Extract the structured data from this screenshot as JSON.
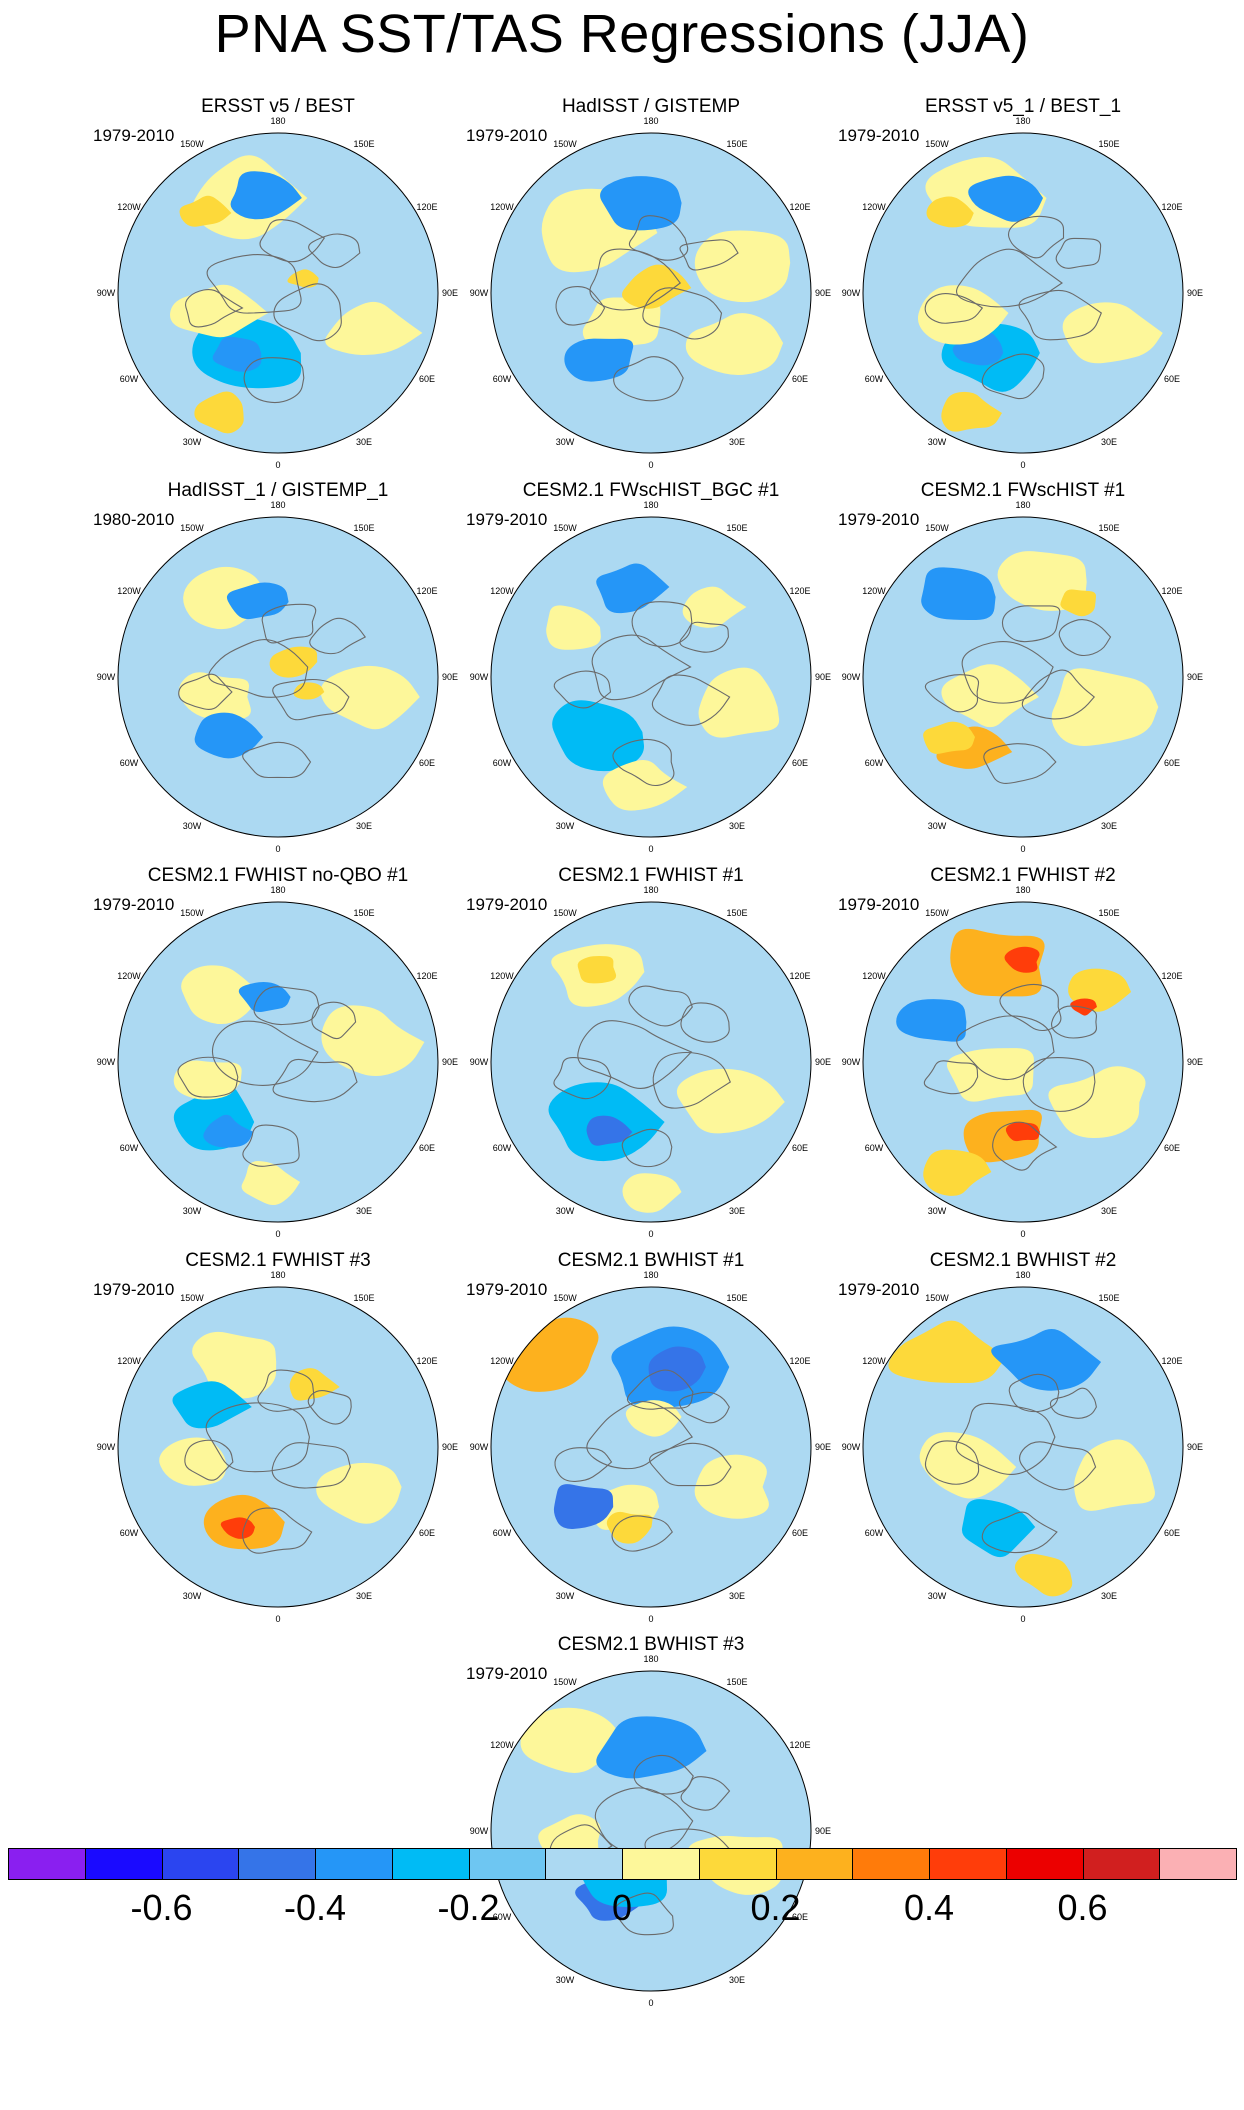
{
  "figure_title": "PNA SST/TAS Regressions (JJA)",
  "longitude_labels": [
    "180",
    "150E",
    "120E",
    "90E",
    "60E",
    "30E",
    "0",
    "30W",
    "60W",
    "90W",
    "120W",
    "150W"
  ],
  "panels": [
    {
      "title": "ERSST v5 / BEST",
      "period": "1979-2010"
    },
    {
      "title": "HadISST / GISTEMP",
      "period": "1979-2010"
    },
    {
      "title": "ERSST v5_1 / BEST_1",
      "period": "1979-2010"
    },
    {
      "title": "HadISST_1 / GISTEMP_1",
      "period": "1980-2010"
    },
    {
      "title": "CESM2.1 FWscHIST_BGC #1",
      "period": "1979-2010"
    },
    {
      "title": "CESM2.1 FWscHIST #1",
      "period": "1979-2010"
    },
    {
      "title": "CESM2.1 FWHIST no-QBO #1",
      "period": "1979-2010"
    },
    {
      "title": "CESM2.1 FWHIST #1",
      "period": "1979-2010"
    },
    {
      "title": "CESM2.1 FWHIST #2",
      "period": "1979-2010"
    },
    {
      "title": "CESM2.1 FWHIST #3",
      "period": "1979-2010"
    },
    {
      "title": "CESM2.1 BWHIST #1",
      "period": "1979-2010"
    },
    {
      "title": "CESM2.1 BWHIST #2",
      "period": "1979-2010"
    },
    {
      "title": "CESM2.1 BWHIST #3",
      "period": "1979-2010"
    }
  ],
  "colorbar": {
    "colors": [
      "#8a1ff0",
      "#1a0aff",
      "#2b45f0",
      "#3574e8",
      "#2596f7",
      "#00bbf5",
      "#6ec6f2",
      "#acd9f2",
      "#fdf79a",
      "#fdd93a",
      "#fdb11e",
      "#ff7b0a",
      "#ff3d0a",
      "#ec0000",
      "#d11f1f",
      "#fbb0b4"
    ],
    "tick_labels": [
      "-0.6",
      "-0.4",
      "-0.2",
      "0",
      "0.2",
      "0.4",
      "0.6"
    ]
  }
}
